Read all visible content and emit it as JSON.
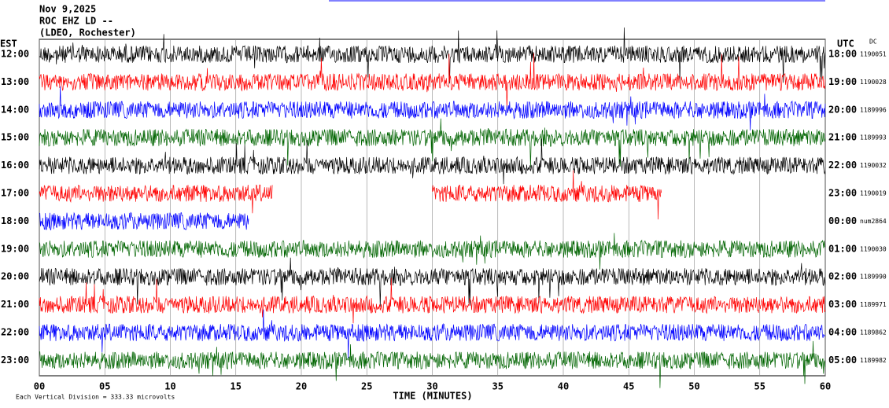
{
  "header": {
    "date": "Nov 9,2025",
    "station": "ROC EHZ LD --",
    "location": "(LDEO, Rochester)"
  },
  "left_axis": {
    "title": "EST",
    "labels": [
      "12:00",
      "13:00",
      "14:00",
      "15:00",
      "16:00",
      "17:00",
      "18:00",
      "19:00",
      "20:00",
      "21:00",
      "22:00",
      "23:00"
    ]
  },
  "right_axis": {
    "title": "UTC",
    "note": "DC",
    "labels": [
      "18:00",
      "19:00",
      "20:00",
      "21:00",
      "22:00",
      "23:00",
      "00:00",
      "01:00",
      "02:00",
      "03:00",
      "04:00",
      "05:00"
    ],
    "values": [
      "1190051",
      "1190028",
      "1189996",
      "1189993",
      "1190032",
      "1190019",
      "num2864",
      "1190030",
      "1189990",
      "1189971",
      "1189862",
      "1189982"
    ]
  },
  "x_axis": {
    "title": "TIME (MINUTES)",
    "labels": [
      "00",
      "05",
      "10",
      "15",
      "20",
      "25",
      "30",
      "35",
      "40",
      "45",
      "50",
      "55",
      "60"
    ]
  },
  "footer": {
    "scale": "Each Vertical Division =  333.33 microvolts"
  }
}
